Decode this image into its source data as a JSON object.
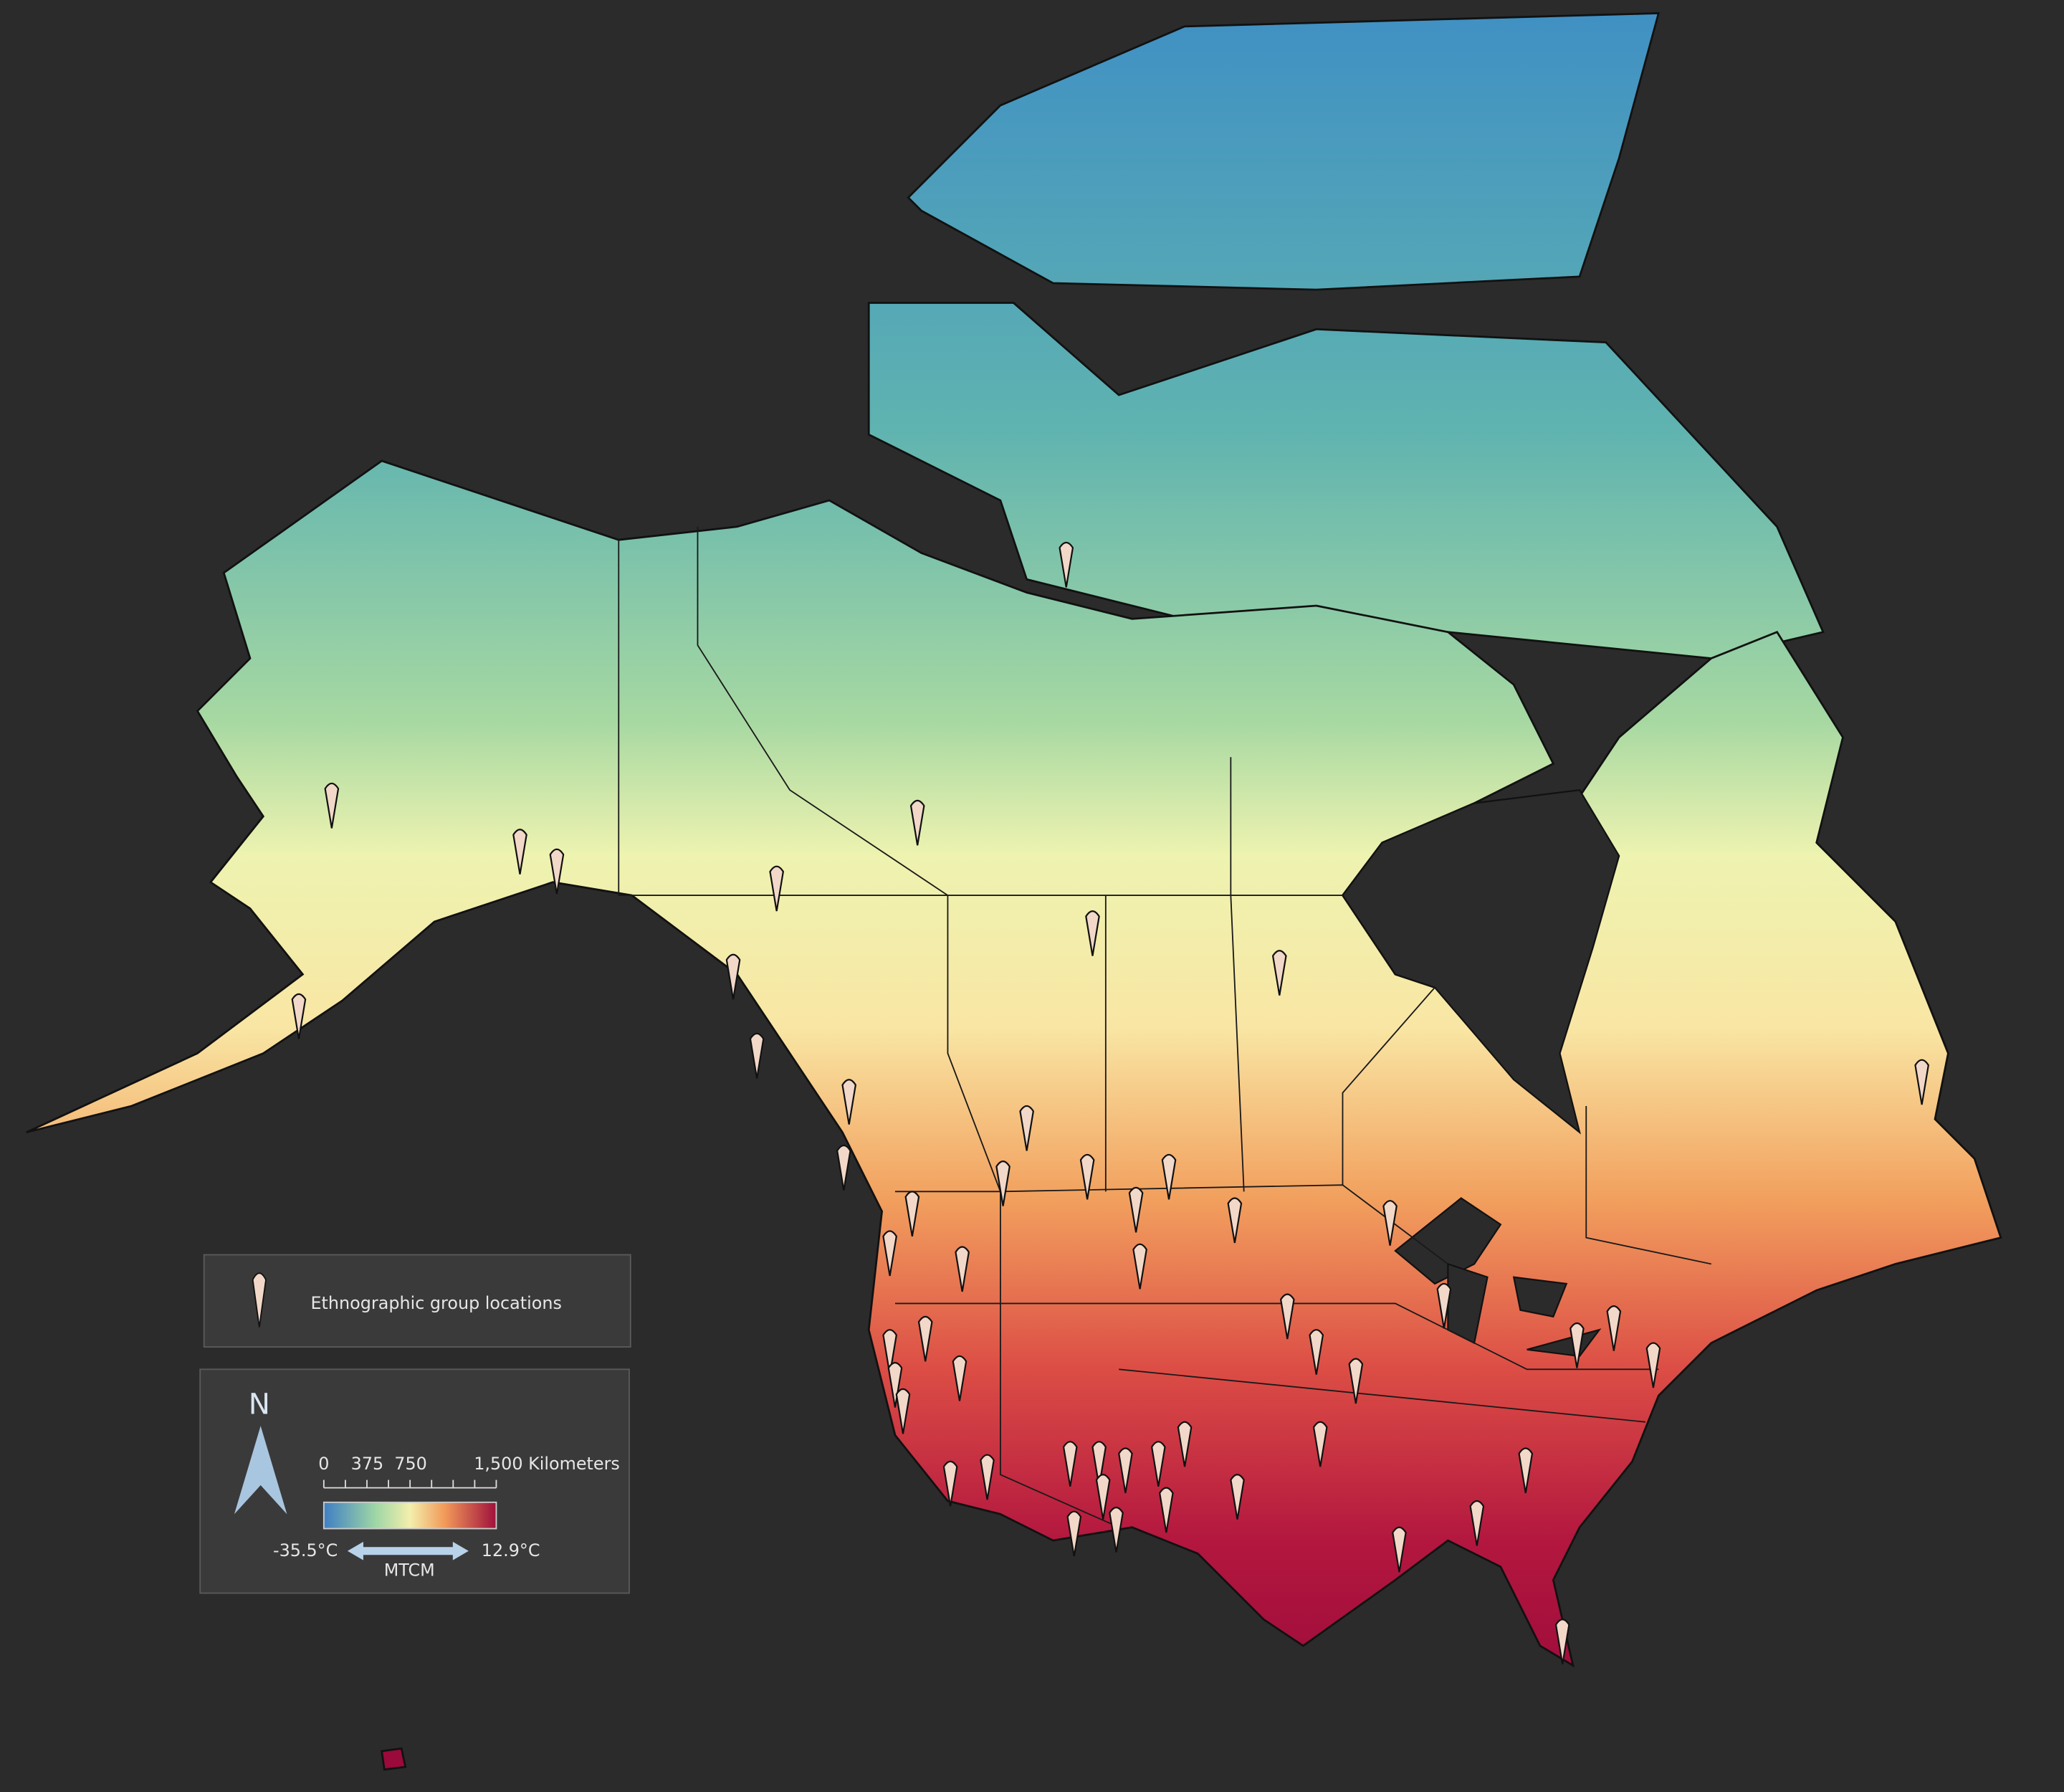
{
  "legend": {
    "marker_label": "Ethnographic group locations"
  },
  "map_key": {
    "north": "N",
    "scale_bar": {
      "ticks": [
        "0",
        "375",
        "750"
      ],
      "end_label": "1,500 Kilometers"
    },
    "color_ramp": {
      "min_label": "-35.5°C",
      "max_label": "12.9°C",
      "variable": "MTCM"
    }
  }
}
